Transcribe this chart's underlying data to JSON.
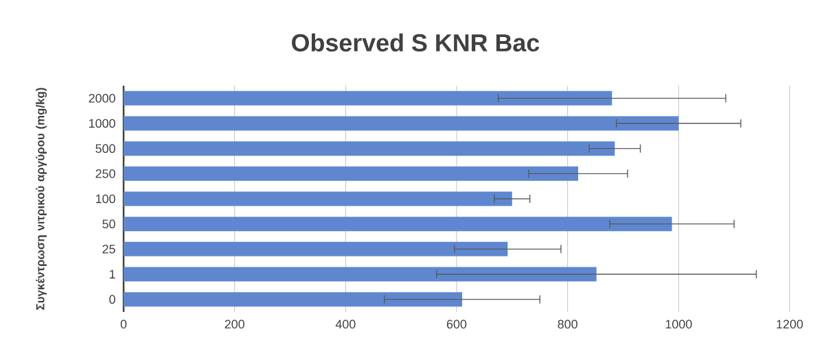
{
  "chart_data": {
    "type": "bar",
    "orientation": "horizontal",
    "title": "Observed S KNR Bac",
    "ylabel": "Συγκέντρωση νιτρικού αργύρου (mg/kg)",
    "categories": [
      "2000",
      "1000",
      "500",
      "250",
      "100",
      "50",
      "25",
      "1",
      "0"
    ],
    "values": [
      880,
      1000,
      885,
      819,
      700,
      988,
      692,
      852,
      610
    ],
    "errors": [
      205,
      112,
      46,
      89,
      32,
      112,
      96,
      288,
      140
    ],
    "color": "#5f87cf",
    "xlim": [
      0,
      1200
    ],
    "xticks": [
      0,
      200,
      400,
      600,
      800,
      1000,
      1200
    ],
    "grid": "x"
  }
}
